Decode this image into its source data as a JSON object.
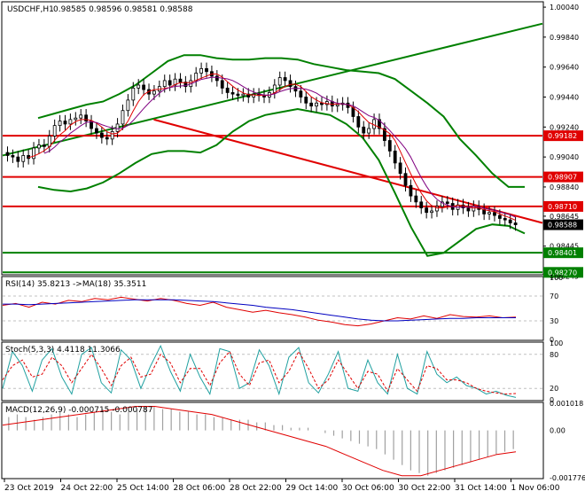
{
  "chart_data": [
    {
      "type": "candlestick",
      "title": "USDCHF,H1  0.98585 0.98596 0.98581 0.98588",
      "symbol_label": "USDCHF,H1",
      "ohlc_label": "0.98585 0.98596 0.98581 0.98588",
      "ylim": [
        0.9826,
        1.0007
      ],
      "ticks": [
        {
          "value": 1.0004,
          "label": "1.00040"
        },
        {
          "value": 0.9984,
          "label": "0.99840"
        },
        {
          "value": 0.9964,
          "label": "0.99640"
        },
        {
          "value": 0.9944,
          "label": "0.99440"
        },
        {
          "value": 0.9924,
          "label": "0.99240"
        },
        {
          "value": 0.9904,
          "label": "0.99040"
        },
        {
          "value": 0.9884,
          "label": "0.98840"
        },
        {
          "value": 0.98645,
          "label": "0.98645"
        },
        {
          "value": 0.98445,
          "label": "0.98445"
        },
        {
          "value": 0.98245,
          "label": "0.98245"
        }
      ],
      "levels": [
        {
          "value": 0.99182,
          "label": "0.99182",
          "color": "#e00000"
        },
        {
          "value": 0.98907,
          "label": "0.98907",
          "color": "#e00000"
        },
        {
          "value": 0.9871,
          "label": "0.98710",
          "color": "#e00000"
        },
        {
          "value": 0.98401,
          "label": "0.98401",
          "color": "#008000"
        },
        {
          "value": 0.9827,
          "label": "0.98270",
          "color": "#008000"
        }
      ],
      "last_price": {
        "value": 0.98588,
        "label": "0.98588"
      },
      "close": [
        0.9905,
        0.9904,
        0.9901,
        0.9905,
        0.9903,
        0.991,
        0.9912,
        0.9911,
        0.9918,
        0.9925,
        0.9928,
        0.9926,
        0.9929,
        0.993,
        0.9932,
        0.9928,
        0.9923,
        0.992,
        0.9917,
        0.9916,
        0.9921,
        0.9926,
        0.9935,
        0.9942,
        0.995,
        0.9952,
        0.9949,
        0.9946,
        0.9948,
        0.9951,
        0.9955,
        0.9952,
        0.9956,
        0.9954,
        0.9951,
        0.9955,
        0.996,
        0.9963,
        0.9961,
        0.9958,
        0.9955,
        0.995,
        0.9947,
        0.9946,
        0.9945,
        0.9946,
        0.9944,
        0.9946,
        0.9945,
        0.9944,
        0.9947,
        0.9952,
        0.9957,
        0.9955,
        0.9951,
        0.9948,
        0.9944,
        0.994,
        0.9938,
        0.994,
        0.9939,
        0.9941,
        0.9938,
        0.9939,
        0.994,
        0.9937,
        0.9931,
        0.9924,
        0.992,
        0.9923,
        0.9929,
        0.9923,
        0.9915,
        0.9908,
        0.99,
        0.9893,
        0.9885,
        0.9878,
        0.9874,
        0.987,
        0.9867,
        0.9868,
        0.9871,
        0.9874,
        0.9873,
        0.9869,
        0.9872,
        0.987,
        0.9868,
        0.9871,
        0.9869,
        0.9866,
        0.9867,
        0.9865,
        0.9863,
        0.9862,
        0.986,
        0.98588
      ],
      "bollinger": {
        "upper": [
          0.993,
          0.9933,
          0.9936,
          0.9939,
          0.9941,
          0.9946,
          0.9952,
          0.996,
          0.9968,
          0.9972,
          0.9972,
          0.997,
          0.9969,
          0.9969,
          0.997,
          0.997,
          0.9969,
          0.9966,
          0.9964,
          0.9962,
          0.9961,
          0.996,
          0.9956,
          0.9948,
          0.994,
          0.9931,
          0.9916,
          0.9905,
          0.9893,
          0.9884,
          0.9884
        ],
        "lower": [
          0.9884,
          0.9882,
          0.9881,
          0.9883,
          0.9887,
          0.9893,
          0.99,
          0.9906,
          0.9908,
          0.9908,
          0.9907,
          0.9912,
          0.9921,
          0.9928,
          0.9932,
          0.9934,
          0.9936,
          0.9934,
          0.9932,
          0.9926,
          0.9917,
          0.9902,
          0.988,
          0.9857,
          0.9838,
          0.984,
          0.9848,
          0.9856,
          0.9859,
          0.9858,
          0.9853
        ]
      },
      "trend_lines": [
        {
          "name": "",
          "color": "#008000",
          "from": [
            0,
            0.9905
          ],
          "to": [
            1,
            0.9993
          ]
        },
        {
          "name": "",
          "color": "#e00000",
          "from": [
            0.28,
            0.9929
          ],
          "to": [
            1,
            0.986
          ]
        }
      ]
    },
    {
      "type": "line",
      "title": "RSI(14) 35.8213  ->MA(18) 35.3511",
      "ylim": [
        0,
        100
      ],
      "ticks": [
        {
          "value": 100,
          "label": "100"
        },
        {
          "value": 70,
          "label": "70"
        },
        {
          "value": 30,
          "label": "30"
        },
        {
          "value": 0,
          "label": "0"
        }
      ],
      "series": [
        {
          "color": "#e00000",
          "values": [
            55,
            58,
            52,
            60,
            57,
            63,
            61,
            66,
            64,
            68,
            65,
            62,
            66,
            63,
            58,
            55,
            60,
            52,
            48,
            44,
            47,
            43,
            40,
            36,
            31,
            28,
            24,
            22,
            25,
            30,
            35,
            33,
            38,
            34,
            40,
            37,
            36,
            38,
            35,
            36
          ]
        },
        {
          "color": "#0000c0",
          "values": [
            57,
            57,
            56,
            57,
            58,
            59,
            60,
            61,
            62,
            63,
            64,
            64,
            64,
            64,
            63,
            62,
            61,
            59,
            57,
            55,
            52,
            50,
            48,
            45,
            42,
            39,
            36,
            33,
            31,
            30,
            30,
            31,
            32,
            33,
            34,
            34,
            35,
            35,
            35,
            35
          ]
        }
      ]
    },
    {
      "type": "line",
      "title": "Stoch(5,3,3) 4.4118 11.3066",
      "ylim": [
        0,
        100
      ],
      "ticks": [
        {
          "value": 100,
          "label": "100"
        },
        {
          "value": 80,
          "label": "80"
        },
        {
          "value": 20,
          "label": "20"
        },
        {
          "value": 0,
          "label": "0"
        }
      ],
      "series": [
        {
          "color": "#20a0a0",
          "values": [
            20,
            85,
            60,
            15,
            70,
            90,
            40,
            10,
            80,
            92,
            30,
            12,
            88,
            70,
            20,
            60,
            95,
            50,
            15,
            80,
            40,
            10,
            90,
            85,
            20,
            30,
            88,
            60,
            10,
            75,
            92,
            30,
            12,
            45,
            85,
            20,
            15,
            70,
            30,
            10,
            80,
            20,
            10,
            85,
            45,
            30,
            40,
            25,
            20,
            10,
            15,
            8,
            4
          ]
        },
        {
          "color": "#e00000",
          "values": [
            35,
            60,
            70,
            40,
            45,
            75,
            60,
            30,
            55,
            80,
            55,
            25,
            60,
            75,
            40,
            45,
            80,
            65,
            30,
            55,
            55,
            25,
            65,
            85,
            45,
            25,
            65,
            70,
            30,
            50,
            85,
            55,
            20,
            35,
            70,
            45,
            20,
            50,
            45,
            15,
            55,
            35,
            15,
            60,
            55,
            35,
            35,
            30,
            20,
            15,
            12,
            10,
            11
          ]
        }
      ]
    },
    {
      "type": "bar",
      "title": "MACD(12,26,9) -0.000715 -0.000787",
      "ylim": [
        -0.001776,
        0.001018
      ],
      "ticks": [
        {
          "value": 0.001018,
          "label": "0.001018"
        },
        {
          "value": 0,
          "label": "0.00"
        },
        {
          "value": -0.001776,
          "label": "-0.001776"
        }
      ],
      "histogram": [
        0.0005,
        0.0006,
        0.0005,
        0.0004,
        0.0005,
        0.0006,
        0.0007,
        0.0006,
        0.0005,
        0.0006,
        0.0007,
        0.0008,
        0.0007,
        0.0006,
        0.0007,
        0.0008,
        0.0009,
        0.0009,
        0.0008,
        0.0008,
        0.0007,
        0.0007,
        0.0006,
        0.0006,
        0.0005,
        0.0005,
        0.0004,
        0.0004,
        0.0004,
        0.0003,
        0.0003,
        0.0002,
        0.0002,
        0.0001,
        0.0001,
        0.0001,
        0.0,
        -0.0001,
        -0.0002,
        -0.0003,
        -0.0004,
        -0.0005,
        -0.0006,
        -0.0007,
        -0.0009,
        -0.0011,
        -0.0013,
        -0.0015,
        -0.0016,
        -0.0017,
        -0.0016,
        -0.0015,
        -0.0014,
        -0.0013,
        -0.0012,
        -0.0011,
        -0.001,
        -0.0009,
        -0.0008,
        -0.0007
      ],
      "signal": [
        0.0002,
        0.0003,
        0.0004,
        0.0005,
        0.0006,
        0.0007,
        0.0008,
        0.0009,
        0.0009,
        0.0008,
        0.0007,
        0.0006,
        0.0004,
        0.0002,
        0.0,
        -0.0002,
        -0.0004,
        -0.0006,
        -0.0009,
        -0.0012,
        -0.0015,
        -0.0017,
        -0.0017,
        -0.0015,
        -0.0013,
        -0.0011,
        -0.0009,
        -0.0008
      ]
    }
  ],
  "x_labels": [
    "23 Oct 2019",
    "24 Oct 22:00",
    "25 Oct 14:00",
    "28 Oct 06:00",
    "28 Oct 22:00",
    "29 Oct 14:00",
    "30 Oct 06:00",
    "30 Oct 22:00",
    "31 Oct 14:00",
    "1 Nov 06:00"
  ]
}
